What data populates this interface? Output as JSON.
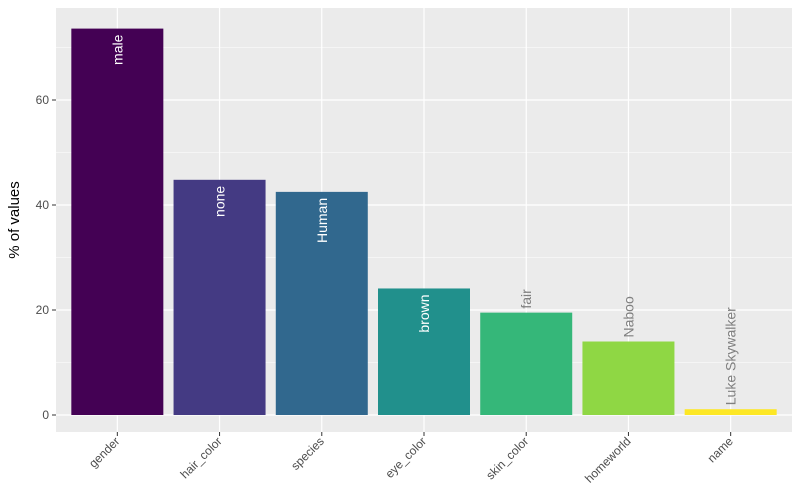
{
  "chart_data": {
    "type": "bar",
    "title": "",
    "xlabel": "",
    "ylabel": "% of values",
    "ylim": [
      0,
      75
    ],
    "y_ticks": [
      0,
      20,
      40,
      60
    ],
    "grid": true,
    "legend": "none",
    "categories": [
      "gender",
      "hair_color",
      "species",
      "eye_color",
      "skin_color",
      "homeworld",
      "name"
    ],
    "values": [
      73.6,
      44.8,
      42.5,
      24.1,
      19.5,
      14.0,
      1.1
    ],
    "labels": [
      "male",
      "none",
      "Human",
      "brown",
      "fair",
      "Naboo",
      "Luke Skywalker"
    ],
    "label_inside": [
      true,
      true,
      true,
      true,
      false,
      false,
      false
    ],
    "colors": [
      "#440154",
      "#443A83",
      "#31688E",
      "#21908C",
      "#35B779",
      "#8FD744",
      "#FDE725"
    ],
    "panel_background": "#EBEBEB",
    "gridline_color": "#FFFFFF",
    "inside_label_color": "#FFFFFF",
    "outside_label_color": "#808080"
  }
}
